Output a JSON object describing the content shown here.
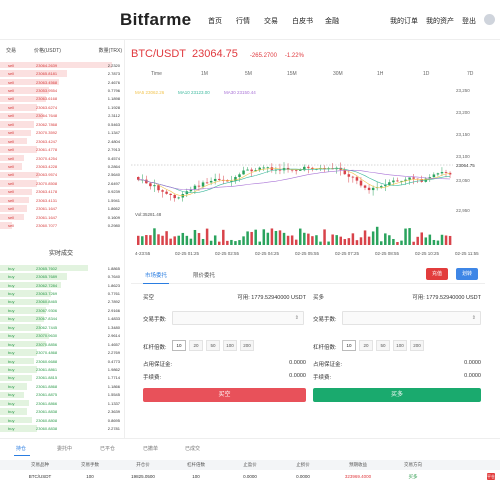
{
  "header": {
    "logo": "Bitfarme",
    "nav": [
      "首页",
      "行情",
      "交易",
      "白皮书",
      "金融"
    ],
    "right": [
      "我的订单",
      "我的资产",
      "登出"
    ]
  },
  "orderbook": {
    "headers": [
      "交易",
      "价格(USDT)",
      "数量(TRX)"
    ],
    "rows": [
      {
        "side": "sell",
        "price": "23064.2639",
        "qty": "2.2320",
        "depth": 0.92
      },
      {
        "side": "sell",
        "price": "23065.8181",
        "qty": "2.7873",
        "depth": 0.55
      },
      {
        "side": "sell",
        "price": "23063.4568",
        "qty": "2.4676",
        "depth": 0.48
      },
      {
        "side": "sell",
        "price": "23053.9554",
        "qty": "0.7796",
        "depth": 0.4
      },
      {
        "side": "sell",
        "price": "23063.6168",
        "qty": "1.1898",
        "depth": 0.38
      },
      {
        "side": "sell",
        "price": "23063.6274",
        "qty": "1.1928",
        "depth": 0.3
      },
      {
        "side": "sell",
        "price": "23064.7648",
        "qty": "2.3112",
        "depth": 0.35
      },
      {
        "side": "sell",
        "price": "23062.7868",
        "qty": "0.5463",
        "depth": 0.28
      },
      {
        "side": "sell",
        "price": "23070.3592",
        "qty": "1.1347",
        "depth": 0.25
      },
      {
        "side": "sell",
        "price": "23063.4247",
        "qty": "2.4804",
        "depth": 0.22
      },
      {
        "side": "sell",
        "price": "23061.4778",
        "qty": "2.7913",
        "depth": 0.3
      },
      {
        "side": "sell",
        "price": "23070.4254",
        "qty": "0.4574",
        "depth": 0.2
      },
      {
        "side": "sell",
        "price": "23063.4228",
        "qty": "0.2864",
        "depth": 0.18
      },
      {
        "side": "sell",
        "price": "23063.9574",
        "qty": "2.5640",
        "depth": 0.32
      },
      {
        "side": "sell",
        "price": "23070.8508",
        "qty": "2.6497",
        "depth": 0.3
      },
      {
        "side": "sell",
        "price": "23063.4178",
        "qty": "0.9239",
        "depth": 0.26
      },
      {
        "side": "sell",
        "price": "23063.4131",
        "qty": "1.5941",
        "depth": 0.24
      },
      {
        "side": "sell",
        "price": "23061.1647",
        "qty": "1.8662",
        "depth": 0.22
      },
      {
        "side": "sell",
        "price": "23061.1647",
        "qty": "0.1609",
        "depth": 0.2
      },
      {
        "side": "sell",
        "price": "23060.7077",
        "qty": "0.2980",
        "depth": 0.1
      }
    ]
  },
  "trades": {
    "title": "实时成交",
    "rows": [
      {
        "side": "buy",
        "price": "23065.7602",
        "qty": "1.8865",
        "depth": 0.72
      },
      {
        "side": "buy",
        "price": "23065.7689",
        "qty": "0.7640",
        "depth": 0.55
      },
      {
        "side": "buy",
        "price": "23062.7284",
        "qty": "1.8623",
        "depth": 0.5
      },
      {
        "side": "buy",
        "price": "23063.7269",
        "qty": "0.7761",
        "depth": 0.42
      },
      {
        "side": "buy",
        "price": "23060.8465",
        "qty": "2.7892",
        "depth": 0.4
      },
      {
        "side": "buy",
        "price": "23067.9306",
        "qty": "2.9166",
        "depth": 0.38
      },
      {
        "side": "buy",
        "price": "23067.8344",
        "qty": "1.4833",
        "depth": 0.36
      },
      {
        "side": "buy",
        "price": "23062.7445",
        "qty": "1.3480",
        "depth": 0.34
      },
      {
        "side": "buy",
        "price": "23070.9630",
        "qty": "2.9614",
        "depth": 0.4
      },
      {
        "side": "buy",
        "price": "23070.8856",
        "qty": "1.4657",
        "depth": 0.38
      },
      {
        "side": "buy",
        "price": "23070.4868",
        "qty": "2.2769",
        "depth": 0.3
      },
      {
        "side": "buy",
        "price": "23060.6688",
        "qty": "0.4773",
        "depth": 0.28
      },
      {
        "side": "buy",
        "price": "23061.8861",
        "qty": "1.9862",
        "depth": 0.3
      },
      {
        "side": "buy",
        "price": "23061.8815",
        "qty": "1.7714",
        "depth": 0.26
      },
      {
        "side": "buy",
        "price": "23061.8868",
        "qty": "1.1866",
        "depth": 0.22
      },
      {
        "side": "buy",
        "price": "23061.8875",
        "qty": "1.5545",
        "depth": 0.2
      },
      {
        "side": "buy",
        "price": "23061.8866",
        "qty": "1.1337",
        "depth": 0.24
      },
      {
        "side": "buy",
        "price": "23061.8838",
        "qty": "2.3639",
        "depth": 0.22
      },
      {
        "side": "buy",
        "price": "23060.8808",
        "qty": "0.8695",
        "depth": 0.26
      },
      {
        "side": "buy",
        "price": "23060.8838",
        "qty": "2.2781",
        "depth": 0.3
      }
    ]
  },
  "ticker": {
    "pair": "BTC/USDT",
    "price": "23064.75",
    "change": "-265.2700",
    "percent": "-1.22%"
  },
  "timeframes": [
    "Time",
    "1M",
    "5M",
    "15M",
    "30M",
    "1H",
    "1D",
    "7D"
  ],
  "time_labels": [
    "4-23:55",
    "02-25 01:25",
    "02-25 02:55",
    "02-25 04:25",
    "02-25 05:55",
    "02-25 07:25",
    "02-25 08:55",
    "02-25 10:25",
    "02-25 11:55"
  ],
  "chart_legend": {
    "ma5": "MA5 23062.26",
    "ma10": "MA10 23123.00",
    "ma30": "MA30 23150.44",
    "vol": "Vol:35281.48"
  },
  "chart_data": {
    "type": "candlestick",
    "price_ticks": [
      "23,250",
      "23,200",
      "23,150",
      "23,100",
      "23,050",
      "22,950"
    ],
    "current_price_label": "23064.75",
    "colors": {
      "up": "#2aa35d",
      "down": "#d8434a",
      "ma5": "#f2c44f",
      "ma10": "#3cb89d",
      "ma30": "#a872d6"
    }
  },
  "trade_panel": {
    "tabs": [
      "市场委托",
      "限价委托"
    ],
    "pills": [
      "充值",
      "划转"
    ],
    "buy_label": "买空",
    "buy_available": "可用: 1779.52940000 USDT",
    "sell_label": "买多",
    "sell_available": "可用: 1779.52940000 USDT",
    "qty_label": "交易手数:",
    "leverage_label": "杠杆倍数:",
    "leverage_options": [
      "10",
      "20",
      "50",
      "100",
      "200"
    ],
    "margin_label": "占用保证金:",
    "margin_value": "0.0000",
    "fee_label": "手续费:",
    "fee_value": "0.0000",
    "sell_button": "买空",
    "buy_button": "买多"
  },
  "bottom_tabs": [
    "持仓",
    "委托中",
    "已平仓",
    "已撤单",
    "已成交"
  ],
  "positions": {
    "headers": [
      "交易品种",
      "交易手数",
      "开仓价",
      "杠杆倍数",
      "止盈价",
      "止损价",
      "预期收益",
      "交易方向"
    ],
    "row": {
      "symbol": "BTC/USDT",
      "qty": "100",
      "open": "19825.0500",
      "leverage": "100",
      "tp": "0.0000",
      "sl": "0.0000",
      "pnl": "323969.4000",
      "dir": "买多",
      "close": "平仓"
    }
  }
}
